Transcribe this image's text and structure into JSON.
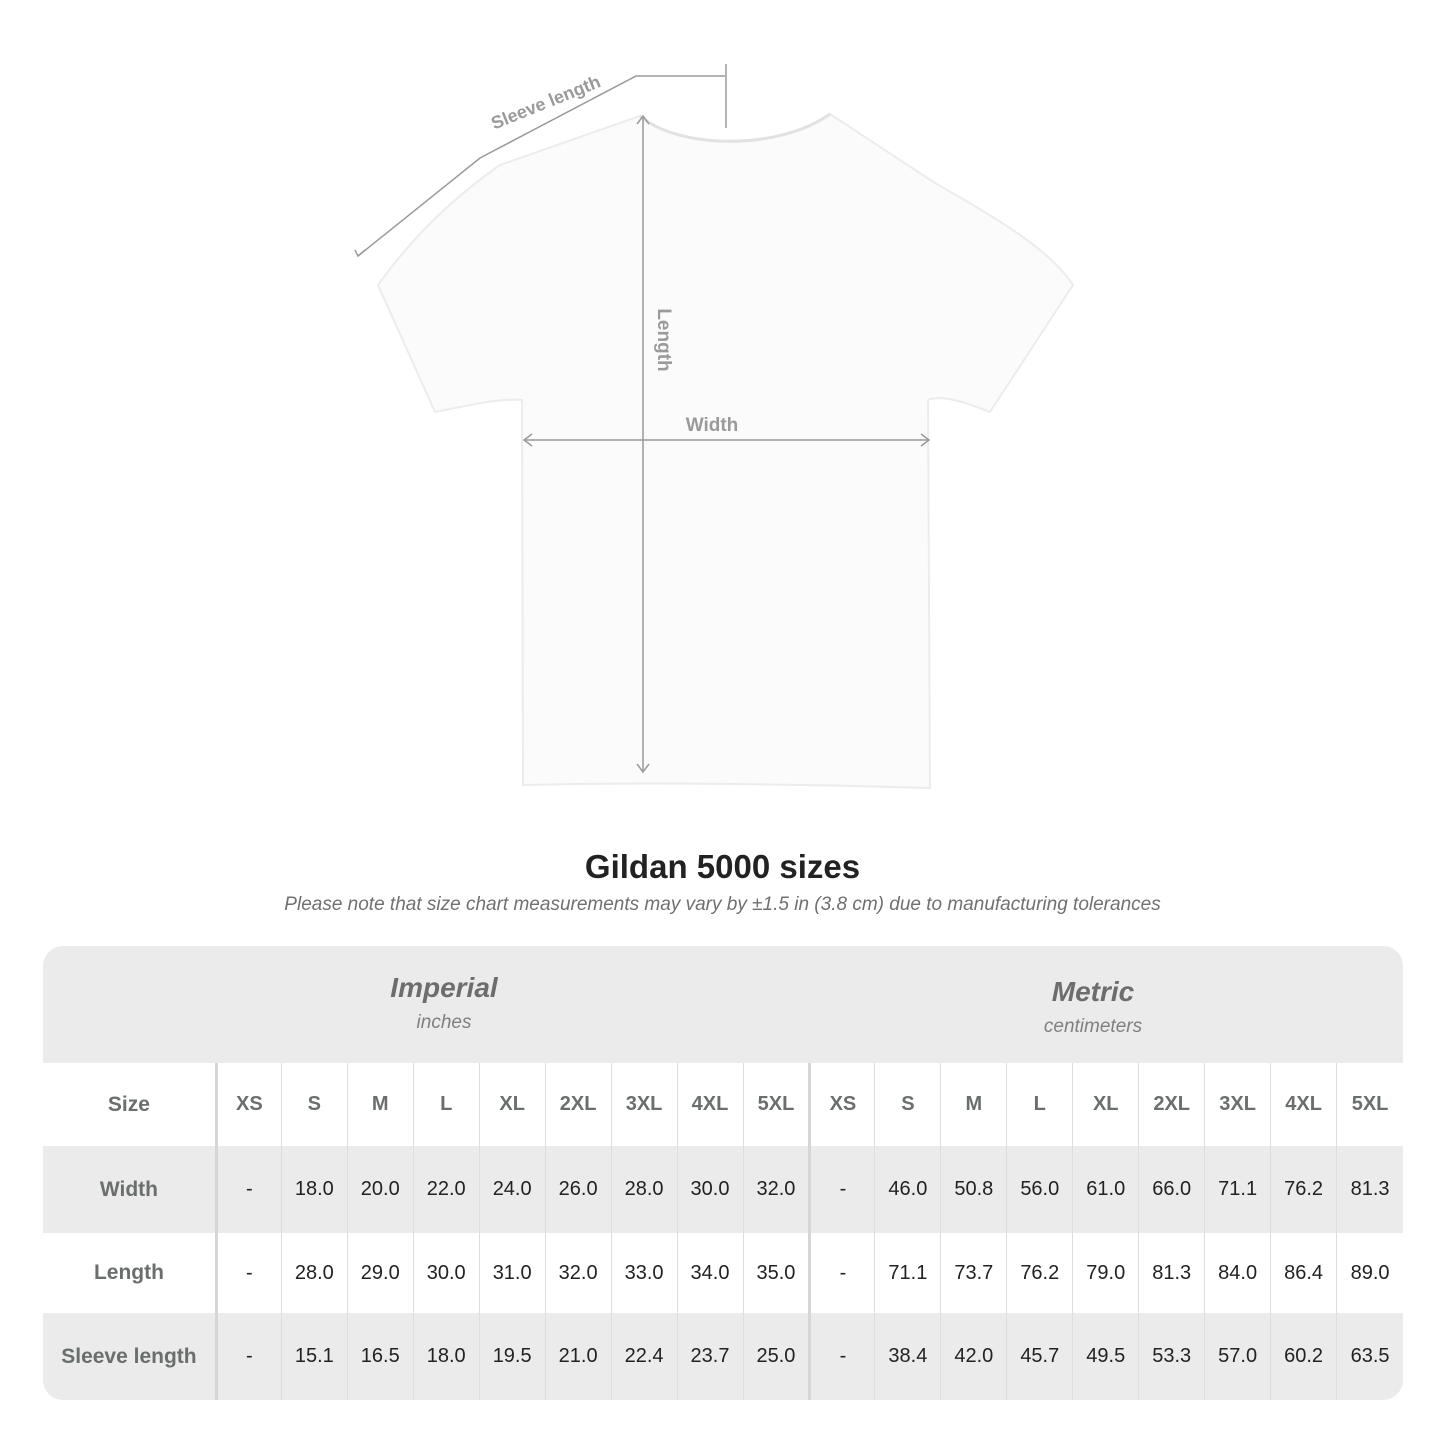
{
  "diagram": {
    "labels": {
      "sleeve": "Sleeve length",
      "length": "Length",
      "width": "Width"
    }
  },
  "title": "Gildan 5000 sizes",
  "note": "Please note that size chart measurements may vary by ±1.5 in (3.8 cm) due to manufacturing tolerances",
  "units": {
    "imperial": {
      "name": "Imperial",
      "sub": "inches"
    },
    "metric": {
      "name": "Metric",
      "sub": "centimeters"
    }
  },
  "table": {
    "size_label": "Size",
    "sizes": [
      "XS",
      "S",
      "M",
      "L",
      "XL",
      "2XL",
      "3XL",
      "4XL",
      "5XL"
    ],
    "rows": [
      {
        "label": "Width",
        "imperial": [
          "-",
          "18.0",
          "20.0",
          "22.0",
          "24.0",
          "26.0",
          "28.0",
          "30.0",
          "32.0"
        ],
        "metric": [
          "-",
          "46.0",
          "50.8",
          "56.0",
          "61.0",
          "66.0",
          "71.1",
          "76.2",
          "81.3"
        ]
      },
      {
        "label": "Length",
        "imperial": [
          "-",
          "28.0",
          "29.0",
          "30.0",
          "31.0",
          "32.0",
          "33.0",
          "34.0",
          "35.0"
        ],
        "metric": [
          "-",
          "71.1",
          "73.7",
          "76.2",
          "79.0",
          "81.3",
          "84.0",
          "86.4",
          "89.0"
        ]
      },
      {
        "label": "Sleeve length",
        "imperial": [
          "-",
          "15.1",
          "16.5",
          "18.0",
          "19.5",
          "21.0",
          "22.4",
          "23.7",
          "25.0"
        ],
        "metric": [
          "-",
          "38.4",
          "42.0",
          "45.7",
          "49.5",
          "53.3",
          "57.0",
          "60.2",
          "63.5"
        ]
      }
    ]
  }
}
